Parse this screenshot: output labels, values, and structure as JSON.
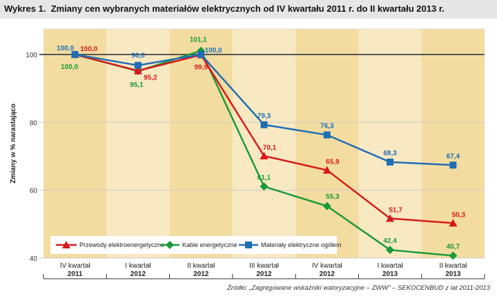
{
  "title": "Wykres 1.  Zmiany cen wybranych materiałów elektrycznych od IV kwartału 2011 r. do II kwartału 2013 r.",
  "source": "Źródło: „Zagregowane wskaźniki waloryzacyjne – ZWW” – SEKOCENBUD z lat 2011-2013",
  "chart_data": {
    "type": "line",
    "ylabel": "Zmiany w % narastająco",
    "xlabel": "",
    "ylim": [
      40,
      110
    ],
    "yticks": [
      40,
      60,
      80,
      100
    ],
    "ytick_labels": [
      "40",
      "60",
      "80",
      "100"
    ],
    "categories": [
      [
        "IV kwartał",
        "2011"
      ],
      [
        "I kwartał",
        "2012"
      ],
      [
        "II kwartał",
        "2012"
      ],
      [
        "III kwartał",
        "2012"
      ],
      [
        "IV kwartał",
        "2012"
      ],
      [
        "I kwartał",
        "2013"
      ],
      [
        "II kwartał",
        "2013"
      ]
    ],
    "legend_position": "bottom-left",
    "series": [
      {
        "name": "Przewody elektroenergetyczne",
        "color": "#d7191c",
        "marker": "triangle",
        "values": [
          100.0,
          95.2,
          99.9,
          70.1,
          65.9,
          51.7,
          50.3
        ],
        "labels": [
          "100,0",
          "95,2",
          "99,9",
          "70,1",
          "65,9",
          "51,7",
          "50,3"
        ]
      },
      {
        "name": "Kable energetyczne",
        "color": "#1a9a3a",
        "marker": "diamond",
        "values": [
          100.0,
          95.1,
          101.1,
          61.1,
          55.3,
          42.4,
          40.7
        ],
        "labels": [
          "100,0",
          "95,1",
          "101,1",
          "61,1",
          "55,3",
          "42,4",
          "40,7"
        ]
      },
      {
        "name": "Materiały elektryczne ogółem",
        "color": "#1f6db5",
        "marker": "square",
        "values": [
          100.0,
          96.8,
          100.0,
          79.3,
          76.3,
          68.3,
          67.4
        ],
        "labels": [
          "100,0",
          "96,8",
          "100,0",
          "79,3",
          "76,3",
          "68,3",
          "67,4"
        ]
      }
    ],
    "column_colors": [
      "#f3dca0",
      "#f8e9c2"
    ],
    "grid": true
  }
}
